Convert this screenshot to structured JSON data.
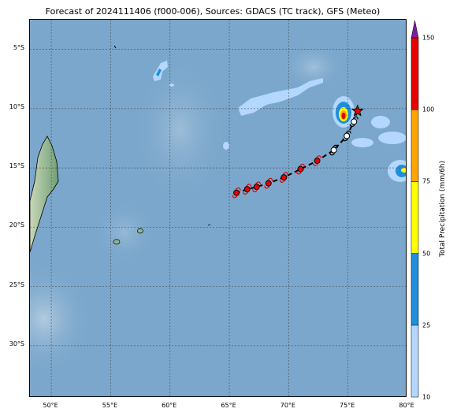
{
  "title": "Forecast of 2024111406 (f000-006), Sources: GDACS (TC track), GFS (Meteo)",
  "map": {
    "lon_range": [
      48.2,
      80.0
    ],
    "lat_range": [
      -34.4,
      -2.5
    ],
    "lat_ticks": [
      "5°S",
      "10°S",
      "15°S",
      "20°S",
      "25°S",
      "30°S"
    ],
    "lon_ticks": [
      "50°E",
      "55°E",
      "60°E",
      "65°E",
      "70°E",
      "75°E",
      "80°E"
    ],
    "ocean_color": "#7ba7cc",
    "land_color": "#8fb690"
  },
  "colorbar": {
    "label": "Total Precipitation (mm/6h)",
    "ticks": [
      "10",
      "25",
      "50",
      "75",
      "100",
      "150"
    ],
    "colors": [
      "#b4d7ff",
      "#1f8fdb",
      "#ffff00",
      "#ffa500",
      "#e60000",
      "#7b1fa2"
    ]
  },
  "track": {
    "points": [
      {
        "lon": 75.8,
        "lat": -10.2,
        "type": "current"
      },
      {
        "lon": 75.5,
        "lat": -11.1,
        "type": "low"
      },
      {
        "lon": 74.9,
        "lat": -12.3,
        "type": "low"
      },
      {
        "lon": 73.8,
        "lat": -13.5,
        "type": "low"
      },
      {
        "lon": 72.4,
        "lat": -14.4,
        "type": "storm"
      },
      {
        "lon": 71.0,
        "lat": -15.1,
        "type": "storm"
      },
      {
        "lon": 69.6,
        "lat": -15.8,
        "type": "storm"
      },
      {
        "lon": 68.3,
        "lat": -16.3,
        "type": "storm"
      },
      {
        "lon": 67.3,
        "lat": -16.6,
        "type": "storm"
      },
      {
        "lon": 66.5,
        "lat": -16.8,
        "type": "storm"
      },
      {
        "lon": 65.6,
        "lat": -17.1,
        "type": "storm"
      }
    ]
  }
}
